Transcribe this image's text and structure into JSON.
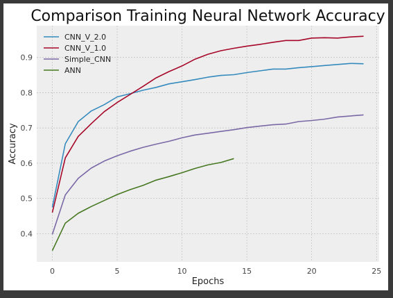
{
  "chart_data": {
    "type": "line",
    "title": "Comparison Training Neural Network Accuracy",
    "xlabel": "Epochs",
    "ylabel": "Accuracy",
    "xlim": [
      -1.2,
      25.2
    ],
    "ylim": [
      0.32,
      0.99
    ],
    "xticks": [
      0,
      5,
      10,
      15,
      20,
      25
    ],
    "yticks": [
      0.4,
      0.5,
      0.6,
      0.7,
      0.8,
      0.9
    ],
    "grid": true,
    "legend_position": "top-left",
    "series": [
      {
        "name": "CNN_V_2.0",
        "color": "#348ABD",
        "x": [
          0,
          1,
          2,
          3,
          4,
          5,
          6,
          7,
          8,
          9,
          10,
          11,
          12,
          13,
          14,
          15,
          16,
          17,
          18,
          19,
          20,
          21,
          22,
          23,
          24
        ],
        "values": [
          0.475,
          0.655,
          0.718,
          0.748,
          0.766,
          0.788,
          0.797,
          0.807,
          0.815,
          0.825,
          0.831,
          0.837,
          0.844,
          0.849,
          0.851,
          0.857,
          0.862,
          0.867,
          0.867,
          0.871,
          0.874,
          0.877,
          0.88,
          0.883,
          0.882
        ]
      },
      {
        "name": "CNN_V_1.0",
        "color": "#A60628",
        "x": [
          0,
          1,
          2,
          3,
          4,
          5,
          6,
          7,
          8,
          9,
          10,
          11,
          12,
          13,
          14,
          15,
          16,
          17,
          18,
          19,
          20,
          21,
          22,
          23,
          24
        ],
        "values": [
          0.46,
          0.615,
          0.676,
          0.712,
          0.746,
          0.772,
          0.795,
          0.818,
          0.842,
          0.86,
          0.876,
          0.895,
          0.909,
          0.919,
          0.926,
          0.932,
          0.937,
          0.943,
          0.948,
          0.948,
          0.955,
          0.956,
          0.955,
          0.958,
          0.96
        ]
      },
      {
        "name": "Simple_CNN",
        "color": "#7A68A6",
        "x": [
          0,
          1,
          2,
          3,
          4,
          5,
          6,
          7,
          8,
          9,
          10,
          11,
          12,
          13,
          14,
          15,
          16,
          17,
          18,
          19,
          20,
          21,
          22,
          23,
          24
        ],
        "values": [
          0.398,
          0.51,
          0.557,
          0.586,
          0.606,
          0.621,
          0.634,
          0.645,
          0.654,
          0.662,
          0.672,
          0.68,
          0.685,
          0.69,
          0.695,
          0.701,
          0.705,
          0.709,
          0.711,
          0.718,
          0.721,
          0.725,
          0.731,
          0.734,
          0.737
        ]
      },
      {
        "name": "ANN",
        "color": "#467821",
        "x": [
          0,
          1,
          2,
          3,
          4,
          5,
          6,
          7,
          8,
          9,
          10,
          11,
          12,
          13,
          14
        ],
        "values": [
          0.352,
          0.43,
          0.458,
          0.477,
          0.494,
          0.511,
          0.525,
          0.537,
          0.552,
          0.562,
          0.573,
          0.585,
          0.595,
          0.602,
          0.613
        ]
      }
    ]
  }
}
